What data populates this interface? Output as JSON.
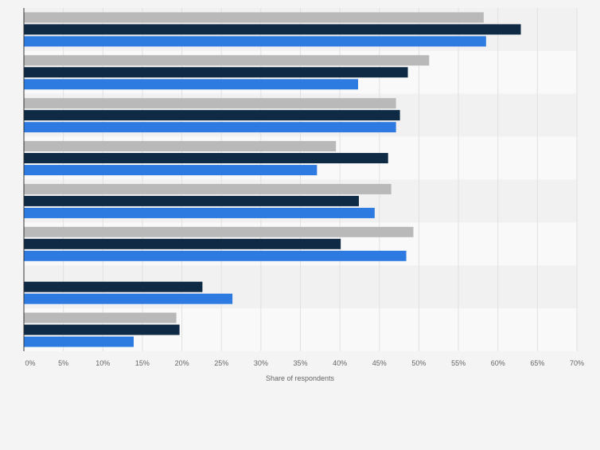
{
  "colors": {
    "page_background": "#f4f4f4",
    "band_light": "#f9f9f9",
    "band_dark": "#f1f1f1",
    "gridline": "#e1e1e1",
    "axis": "#333333",
    "tick_text": "#666666"
  },
  "chart_data": {
    "type": "bar",
    "orientation": "horizontal",
    "title": "",
    "xlabel": "Share of respondents",
    "ylabel": "",
    "xlim": [
      0,
      70
    ],
    "x_ticks": [
      0,
      5,
      10,
      15,
      20,
      25,
      30,
      35,
      40,
      45,
      50,
      55,
      60,
      65,
      70
    ],
    "x_tick_labels": [
      "0%",
      "5%",
      "10%",
      "15%",
      "20%",
      "25%",
      "30%",
      "35%",
      "40%",
      "45%",
      "50%",
      "55%",
      "60%",
      "65%",
      "70%"
    ],
    "grid": true,
    "legend": "none",
    "categories": [
      "",
      "",
      "",
      "",
      "",
      "",
      "",
      ""
    ],
    "series": [
      {
        "color": "#b9b9b9",
        "values": [
          58.2,
          51.3,
          47.1,
          39.5,
          46.5,
          49.3,
          null,
          19.3
        ]
      },
      {
        "color": "#0f2a45",
        "values": [
          62.9,
          48.6,
          47.6,
          46.1,
          42.4,
          40.1,
          22.6,
          19.7
        ]
      },
      {
        "color": "#2d7be0",
        "values": [
          58.5,
          42.3,
          47.1,
          37.1,
          44.4,
          48.4,
          26.4,
          13.9
        ]
      }
    ]
  }
}
